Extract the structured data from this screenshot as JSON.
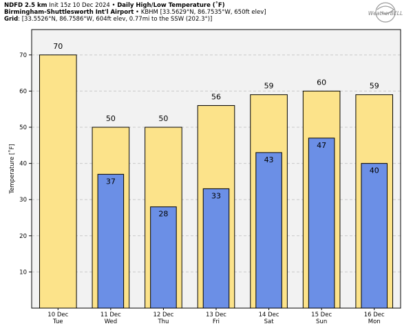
{
  "header": {
    "line1_bold": "NDFD 2.5 km",
    "line1_init": "Init 15z 10 Dec 2024",
    "line1_sep": "•",
    "line1_title": "Daily High/Low Temperature (˚F)",
    "line2_bold": "Birmingham-Shuttlesworth Int'l Airport",
    "line2_sep": "•",
    "line2_rest": "KBHM [33.5629°N, 86.7535°W, 650ft elev]",
    "line3_bold": "Grid",
    "line3_rest": ": [33.5526°N, 86.7586°W, 604ft elev, 0.77mi to the SSW (202.3°)]"
  },
  "logo": {
    "text": "WeatherBELL"
  },
  "colors": {
    "high": "#fce38a",
    "low": "#6b8fe6",
    "grid": "#c9c9c9",
    "plot_bg": "#f2f2f2"
  },
  "chart_data": {
    "type": "bar",
    "categories": [
      "10 Dec",
      "11 Dec",
      "12 Dec",
      "13 Dec",
      "14 Dec",
      "15 Dec",
      "16 Dec"
    ],
    "weekdays": [
      "Tue",
      "Wed",
      "Thu",
      "Fri",
      "Sat",
      "Sun",
      "Mon"
    ],
    "series": [
      {
        "values": [
          70,
          50,
          50,
          56,
          59,
          60,
          59
        ]
      },
      {
        "values": [
          null,
          37,
          28,
          33,
          43,
          47,
          40
        ]
      }
    ],
    "ylabel": "Temperature [˚F]",
    "ylim": [
      0,
      77
    ],
    "yticks": [
      10,
      20,
      30,
      40,
      50,
      60,
      70
    ],
    "grid": true
  }
}
